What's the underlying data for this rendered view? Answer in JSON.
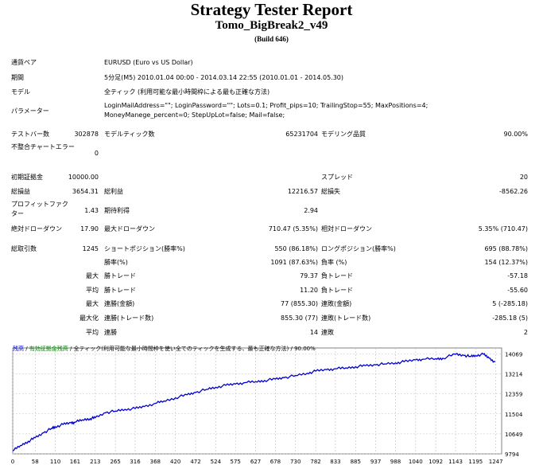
{
  "report": {
    "title": "Strategy Tester Report",
    "ea_name": "Tomo_BigBreak2_v49",
    "build": "(Build 646)"
  },
  "info": {
    "symbol_label": "通貨ペア",
    "symbol_value": "EURUSD (Euro vs US Dollar)",
    "period_label": "期間",
    "period_value": "5分足(M5) 2010.01.04 00:00 - 2014.03.14 22:55 (2010.01.01 - 2014.05.30)",
    "model_label": "モデル",
    "model_value": "全ティック (利用可能な最小時間枠による最も正確な方法)",
    "params_label": "パラメーター",
    "params_value": "LoginMailAddress=\"\"; LoginPassword=\"\"; Lots=0.1; Profit_pips=10; TrailingStop=55; MaxPositions=4; MoneyManege_percent=0; StepUpLot=false; Mail=false;"
  },
  "stats": {
    "bars_label": "テストバー数",
    "bars_value": "302878",
    "ticks_label": "モデルティック数",
    "ticks_value": "65231704",
    "quality_label": "モデリング品質",
    "quality_value": "90.00%",
    "mismatch_label": "不整合チャートエラー",
    "mismatch_value": "0",
    "deposit_label": "初期証拠金",
    "deposit_value": "10000.00",
    "spread_label": "スプレッド",
    "spread_value": "20",
    "net_label": "総損益",
    "net_value": "3654.31",
    "gross_profit_label": "総利益",
    "gross_profit_value": "12216.57",
    "gross_loss_label": "総損失",
    "gross_loss_value": "-8562.26",
    "pf_label": "プロフィットファクター",
    "pf_value": "1.43",
    "payoff_label": "期待利得",
    "payoff_value": "2.94",
    "abs_dd_label": "絶対ドローダウン",
    "abs_dd_value": "17.90",
    "max_dd_label": "最大ドローダウン",
    "max_dd_value": "710.47 (5.35%)",
    "rel_dd_label": "相対ドローダウン",
    "rel_dd_value": "5.35% (710.47)",
    "trades_label": "総取引数",
    "trades_value": "1245",
    "short_label": "ショートポジション(勝率%)",
    "short_value": "550 (86.18%)",
    "long_label": "ロングポジション(勝率%)",
    "long_value": "695 (88.78%)",
    "win_label": "勝率(%)",
    "win_value": "1091 (87.63%)",
    "loss_label": "負率 (%)",
    "loss_value": "154 (12.37%)",
    "largest_label": "最大",
    "largest_win_label": "勝トレード",
    "largest_win_value": "79.37",
    "largest_loss_label": "負トレード",
    "largest_loss_value": "-57.18",
    "avg_label": "平均",
    "avg_win_label": "勝トレード",
    "avg_win_value": "11.20",
    "avg_loss_label": "負トレード",
    "avg_loss_value": "-55.60",
    "max_label": "最大",
    "max_cw_label": "連勝(金額)",
    "max_cw_value": "77 (855.30)",
    "max_cl_label": "連敗(金額)",
    "max_cl_value": "5 (-285.18)",
    "maxi_label": "最大化",
    "maxi_cw_label": "連勝(トレード数)",
    "maxi_cw_value": "855.30 (77)",
    "maxi_cl_label": "連敗(トレード数)",
    "maxi_cl_value": "-285.18 (5)",
    "avgc_label": "平均",
    "avgc_w_label": "連勝",
    "avgc_w_value": "14",
    "avgc_l_label": "連敗",
    "avgc_l_value": "2"
  },
  "legend": {
    "balance": "残高",
    "sep1": " / ",
    "equity": "有効証拠金残高",
    "sep2": " / ",
    "model": "全ティック(利用可能な最小時間枠を使い全てのティックを生成する、最も正確な方法)",
    "sep3": " / ",
    "quality": "90.00%"
  },
  "colors": {
    "balance": "#0000cc",
    "equity": "#008000",
    "grid": "#c0c0c0"
  },
  "chart_data": {
    "type": "line",
    "xlabel": "",
    "ylabel": "",
    "x_ticks": [
      0,
      58,
      110,
      161,
      213,
      265,
      316,
      368,
      420,
      472,
      524,
      575,
      627,
      678,
      730,
      782,
      833,
      885,
      937,
      988,
      1040,
      1092,
      1143,
      1195,
      1247
    ],
    "y_ticks": [
      9794,
      10649,
      11504,
      12359,
      13214,
      14069
    ],
    "xlim": [
      0,
      1262
    ],
    "ylim": [
      9794,
      14320
    ],
    "series": [
      {
        "name": "残高",
        "x": [
          0,
          20,
          40,
          58,
          80,
          100,
          110,
          130,
          150,
          161,
          180,
          200,
          213,
          240,
          265,
          290,
          316,
          340,
          368,
          390,
          420,
          450,
          472,
          500,
          524,
          550,
          575,
          600,
          627,
          650,
          678,
          700,
          730,
          760,
          782,
          810,
          833,
          860,
          885,
          910,
          937,
          960,
          988,
          1010,
          1040,
          1060,
          1092,
          1110,
          1143,
          1165,
          1180,
          1195,
          1215,
          1230,
          1245
        ],
        "y": [
          9920,
          10150,
          10330,
          10480,
          10700,
          10880,
          10950,
          11050,
          11120,
          11150,
          11250,
          11300,
          11340,
          11560,
          11620,
          11700,
          11730,
          11820,
          11950,
          12050,
          12190,
          12320,
          12420,
          12550,
          12640,
          12720,
          12780,
          12840,
          12880,
          12930,
          12990,
          13050,
          13140,
          13240,
          13330,
          13390,
          13430,
          13470,
          13520,
          13560,
          13600,
          13640,
          13680,
          13730,
          13810,
          13840,
          13860,
          13880,
          14050,
          14000,
          13960,
          14000,
          14050,
          13880,
          13720
        ]
      }
    ]
  }
}
